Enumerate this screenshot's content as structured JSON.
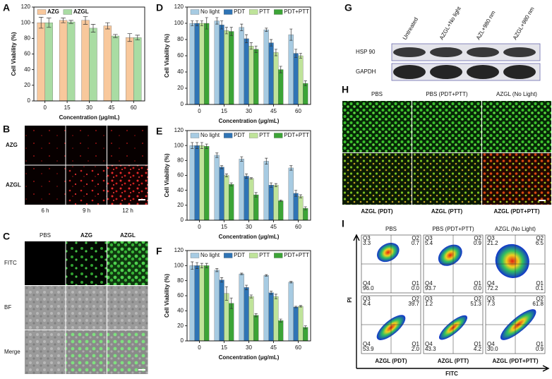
{
  "chart_data": [
    {
      "type": "bar",
      "panel": "A",
      "ylabel": "Cell Viability (%)",
      "xlabel": "Concentration (μg/mL)",
      "categories": [
        "0",
        "15",
        "30",
        "45",
        "60"
      ],
      "series": [
        {
          "name": "AZG",
          "color": "#f8c89c",
          "values": [
            100,
            103,
            103,
            96,
            81
          ],
          "errors": [
            7,
            3,
            5,
            4,
            5
          ]
        },
        {
          "name": "AZGL",
          "color": "#a9dca3",
          "values": [
            100,
            101,
            93,
            83,
            81
          ],
          "errors": [
            6,
            2,
            5,
            2,
            3
          ]
        }
      ],
      "ylim": [
        0,
        120
      ],
      "yticks": [
        0,
        20,
        40,
        60,
        80,
        100,
        120
      ],
      "legend": "upper left"
    },
    {
      "type": "bar",
      "panel": "D",
      "ylabel": "Cell Viability (%)",
      "xlabel": "Concentration (μg/mL)",
      "categories": [
        "0",
        "15",
        "30",
        "45",
        "60"
      ],
      "series": [
        {
          "name": "No light",
          "color": "#a7cbe2",
          "values": [
            100,
            103,
            95,
            92,
            86
          ],
          "errors": [
            3,
            4,
            4,
            2,
            7
          ]
        },
        {
          "name": "PDT",
          "color": "#2f74b5",
          "values": [
            100,
            98,
            81,
            76,
            63
          ],
          "errors": [
            3,
            5,
            5,
            4,
            5
          ]
        },
        {
          "name": "PTT",
          "color": "#bfe39a",
          "values": [
            100,
            91,
            72,
            64,
            60
          ],
          "errors": [
            3,
            4,
            4,
            4,
            3
          ]
        },
        {
          "name": "PDT+PTT",
          "color": "#3ca437",
          "values": [
            100,
            90,
            68,
            43,
            26
          ],
          "errors": [
            7,
            5,
            4,
            4,
            3
          ]
        }
      ],
      "ylim": [
        0,
        120
      ],
      "yticks": [
        0,
        20,
        40,
        60,
        80,
        100,
        120
      ],
      "legend": "upper center"
    },
    {
      "type": "bar",
      "panel": "E",
      "ylabel": "Cell Viability (%)",
      "xlabel": "Concentration (μg/mL)",
      "categories": [
        "0",
        "15",
        "30",
        "45",
        "60"
      ],
      "series": [
        {
          "name": "No light",
          "color": "#a7cbe2",
          "values": [
            100,
            87,
            82,
            79,
            70
          ],
          "errors": [
            4,
            3,
            3,
            4,
            3
          ]
        },
        {
          "name": "PDT",
          "color": "#2f74b5",
          "values": [
            100,
            71,
            59,
            47,
            36
          ],
          "errors": [
            4,
            2,
            3,
            3,
            4
          ]
        },
        {
          "name": "PTT",
          "color": "#bfe39a",
          "values": [
            100,
            60,
            56,
            47,
            32
          ],
          "errors": [
            4,
            2,
            1,
            2,
            2
          ]
        },
        {
          "name": "PDT+PTT",
          "color": "#3ca437",
          "values": [
            99,
            48,
            34,
            26,
            16
          ],
          "errors": [
            3,
            2,
            3,
            1,
            2
          ]
        }
      ],
      "ylim": [
        0,
        120
      ],
      "yticks": [
        0,
        20,
        40,
        60,
        80,
        100,
        120
      ],
      "legend": "upper center"
    },
    {
      "type": "bar",
      "panel": "F",
      "ylabel": "Cell Viability (%)",
      "xlabel": "Concentration (μg/mL)",
      "categories": [
        "0",
        "15",
        "30",
        "45",
        "60"
      ],
      "series": [
        {
          "name": "No light",
          "color": "#a7cbe2",
          "values": [
            100,
            94,
            89,
            87,
            78
          ],
          "errors": [
            5,
            2,
            1,
            1,
            1
          ]
        },
        {
          "name": "PDT",
          "color": "#2f74b5",
          "values": [
            100,
            81,
            71,
            64,
            45
          ],
          "errors": [
            4,
            3,
            3,
            2,
            1
          ]
        },
        {
          "name": "PTT",
          "color": "#bfe39a",
          "values": [
            100,
            63,
            59,
            59,
            46
          ],
          "errors": [
            3,
            9,
            2,
            3,
            1
          ]
        },
        {
          "name": "PDT+PTT",
          "color": "#3ca437",
          "values": [
            100,
            50,
            34,
            27,
            18
          ],
          "errors": [
            3,
            7,
            2,
            2,
            2
          ]
        }
      ],
      "ylim": [
        0,
        120
      ],
      "yticks": [
        0,
        20,
        40,
        60,
        80,
        100,
        120
      ],
      "legend": "upper center"
    }
  ],
  "panel_b": {
    "label": "B",
    "rows": [
      "AZG",
      "AZGL"
    ],
    "columns": [
      "6 h",
      "9 h",
      "12 h"
    ]
  },
  "panel_c": {
    "label": "C",
    "rows": [
      "FITC",
      "BF",
      "Merge"
    ],
    "columns": [
      "PBS",
      "AZG",
      "AZGL"
    ]
  },
  "panel_g": {
    "label": "G",
    "columns": [
      "Untreated",
      "AZGL+No light",
      "AZL+980 nm",
      "AZGL+980 nm"
    ],
    "rows": [
      "HSP 90",
      "GAPDH"
    ]
  },
  "panel_h": {
    "label": "H",
    "top_labels": [
      "PBS",
      "PBS (PDT+PTT)",
      "AZGL (No Light)"
    ],
    "bottom_labels": [
      "AZGL (PDT)",
      "AZGL (PTT)",
      "AZGL (PDT+PTT)"
    ]
  },
  "panel_i": {
    "label": "I",
    "x_label": "FITC",
    "y_label": "PI",
    "quadrant_names": [
      "Q1",
      "Q2",
      "Q3",
      "Q4"
    ],
    "plots": [
      {
        "title": "PBS",
        "q1": "0.0",
        "q2": "0.7",
        "q3": "3.3",
        "q4": "96.0"
      },
      {
        "title": "PBS (PDT+PTT)",
        "q1": "0.0",
        "q2": "0.9",
        "q3": "5.4",
        "q4": "93.7"
      },
      {
        "title": "AZGL (No Light)",
        "q1": "0.1",
        "q2": "6.5",
        "q3": "21.2",
        "q4": "72.2"
      },
      {
        "title": "AZGL (PDT)",
        "q1": "2.0",
        "q2": "39.7",
        "q3": "4.4",
        "q4": "53.9"
      },
      {
        "title": "AZGL (PTT)",
        "q1": "4.2",
        "q2": "51.3",
        "q3": "1.2",
        "q4": "43.3"
      },
      {
        "title": "AZGL (PDT+PTT)",
        "q1": "0.9",
        "q2": "61.8",
        "q3": "7.3",
        "q4": "30.0"
      }
    ]
  }
}
